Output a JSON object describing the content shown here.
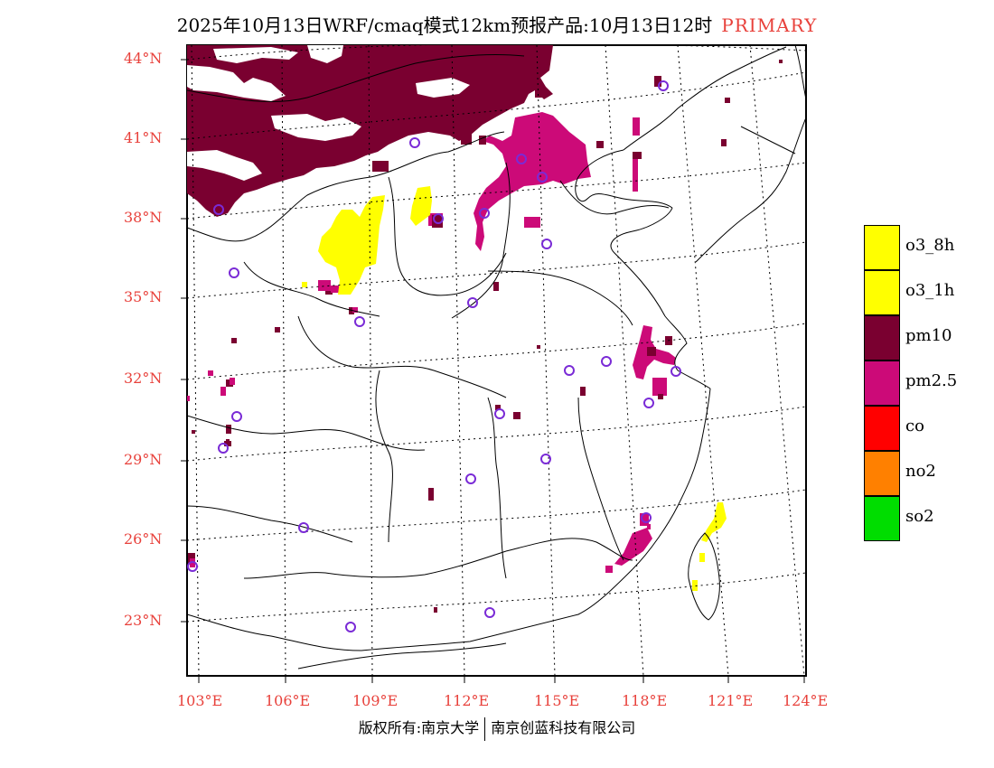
{
  "title": {
    "text": "2025年10月13日WRF/cmaq模式12km预报产品:10月13日12时",
    "tag": "PRIMARY"
  },
  "axes": {
    "lat_labels": [
      "44°N",
      "41°N",
      "38°N",
      "35°N",
      "32°N",
      "29°N",
      "26°N",
      "23°N"
    ],
    "lon_labels": [
      "103°E",
      "106°E",
      "109°E",
      "112°E",
      "115°E",
      "118°E",
      "121°E",
      "124°E"
    ]
  },
  "legend": [
    {
      "label": "o3_8h",
      "color": "#ffff00"
    },
    {
      "label": "o3_1h",
      "color": "#ffff00"
    },
    {
      "label": "pm10",
      "color": "#7a0030"
    },
    {
      "label": "pm2.5",
      "color": "#cc0a78"
    },
    {
      "label": "co",
      "color": "#ff0000"
    },
    {
      "label": "no2",
      "color": "#ff8000"
    },
    {
      "label": "so2",
      "color": "#00dd00"
    }
  ],
  "colors": {
    "axis_label": "#e8413b",
    "station_marker": "#7a2bd6"
  },
  "copyright": {
    "left": "版权所有:南京大学",
    "right": "南京创蓝科技有限公司"
  }
}
